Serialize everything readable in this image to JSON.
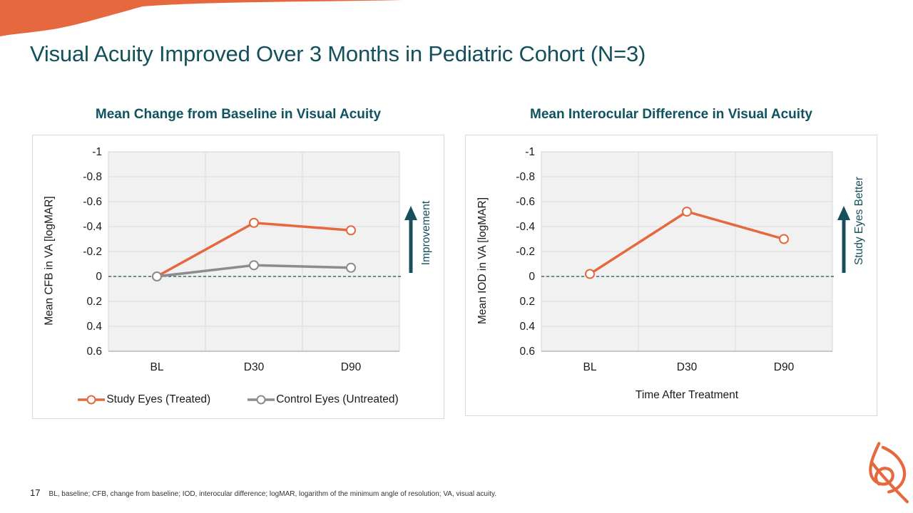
{
  "slide": {
    "title": "Visual Acuity Improved Over 3 Months in Pediatric Cohort (N=3)",
    "page_number": "17",
    "footnote": "BL, baseline; CFB, change from baseline; IOD, interocular difference; logMAR, logarithm of the minimum angle of resolution; VA, visual acuity.",
    "accent_orange": "#E5683F",
    "accent_teal": "#12505C",
    "arrow_teal": "#17505C"
  },
  "chart_data": [
    {
      "type": "line",
      "title": "Mean Change from Baseline in Visual Acuity",
      "ylabel": "Mean CFB in VA [logMAR]",
      "xlabel": "",
      "categories": [
        "BL",
        "D30",
        "D90"
      ],
      "yticks": [
        -1,
        -0.8,
        -0.6,
        -0.4,
        -0.2,
        0,
        0.2,
        0.4,
        0.6
      ],
      "ylim": [
        -1,
        0.6
      ],
      "y_axis_inverted": true,
      "zero_reference_line": true,
      "grid": true,
      "series": [
        {
          "name": "Study Eyes (Treated)",
          "color": "#E5683F",
          "values": [
            0,
            -0.43,
            -0.37
          ]
        },
        {
          "name": "Control Eyes (Untreated)",
          "color": "#8C8C8C",
          "values": [
            0,
            -0.09,
            -0.07
          ]
        }
      ],
      "legend_position": "bottom",
      "side_arrow_label": "Improvement"
    },
    {
      "type": "line",
      "title": "Mean Interocular Difference in Visual Acuity",
      "ylabel": "Mean IOD in VA [logMAR]",
      "xlabel": "Time After Treatment",
      "categories": [
        "BL",
        "D30",
        "D90"
      ],
      "yticks": [
        -1,
        -0.8,
        -0.6,
        -0.4,
        -0.2,
        0,
        0.2,
        0.4,
        0.6
      ],
      "ylim": [
        -1,
        0.6
      ],
      "y_axis_inverted": true,
      "zero_reference_line": true,
      "grid": true,
      "series": [
        {
          "name": "Study Eyes (Treated)",
          "color": "#E5683F",
          "values": [
            -0.02,
            -0.52,
            -0.3
          ]
        }
      ],
      "legend_position": "none",
      "side_arrow_label": "Study Eyes Better"
    }
  ]
}
